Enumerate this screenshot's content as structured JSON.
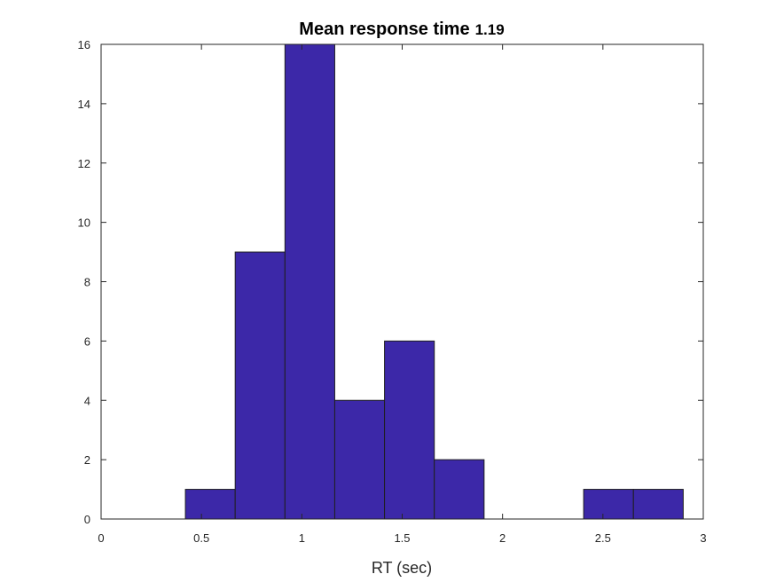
{
  "chart_data": {
    "type": "bar",
    "subtype": "histogram",
    "title": "Mean response time",
    "title_value": "1.19",
    "xlabel": "RT (sec)",
    "ylabel": "",
    "xlim": [
      0,
      3
    ],
    "ylim": [
      0,
      16
    ],
    "xticks": [
      "0",
      "0.5",
      "1",
      "1.5",
      "2",
      "2.5",
      "3"
    ],
    "yticks": [
      "0",
      "2",
      "4",
      "6",
      "8",
      "10",
      "12",
      "14",
      "16"
    ],
    "bin_edges": [
      0.42,
      0.668,
      0.916,
      1.164,
      1.412,
      1.66,
      1.908,
      2.156,
      2.404,
      2.652,
      2.9
    ],
    "counts": [
      1,
      9,
      16,
      4,
      6,
      2,
      0,
      0,
      1,
      1
    ],
    "bar_color": "#3c28a8",
    "edge_color": "#1f1f1f",
    "grid": false,
    "legend": "none"
  }
}
